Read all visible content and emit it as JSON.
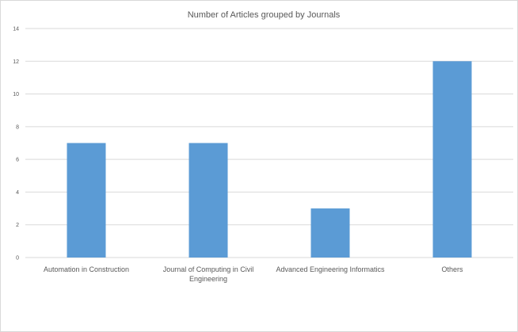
{
  "chart_data": {
    "type": "bar",
    "title": "Number of Articles grouped by Journals",
    "categories": [
      "Automation in Construction",
      "Journal of Computing in Civil Engineering",
      "Advanced Engineering Informatics",
      "Others"
    ],
    "category_lines": [
      [
        "Automation in Construction"
      ],
      [
        "Journal of Computing in Civil",
        "Engineering"
      ],
      [
        "Advanced Engineering Informatics"
      ],
      [
        "Others"
      ]
    ],
    "values": [
      7,
      7,
      3,
      12
    ],
    "ylim": [
      0,
      14
    ],
    "yticks": [
      "0",
      "2",
      "4",
      "6",
      "8",
      "10",
      "12",
      "14"
    ],
    "grid": true,
    "legend": "none",
    "colors": {
      "bar": "#5b9bd5",
      "grid": "#d9d9d9",
      "text": "#595959"
    }
  }
}
